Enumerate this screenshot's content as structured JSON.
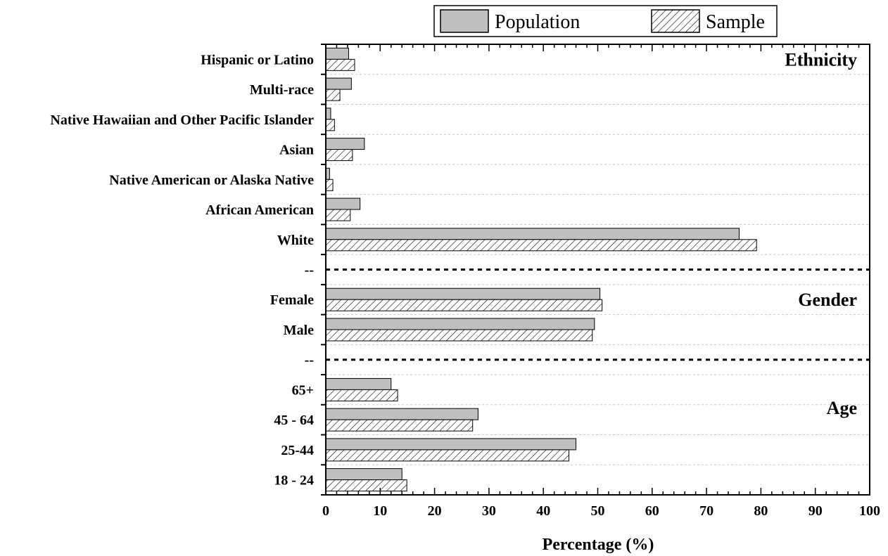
{
  "colors": {
    "population_fill": "#c0c0c0",
    "sample_fill": "#ffffff",
    "stroke": "#000000",
    "grid": "#c8c8c8"
  },
  "chart_data": {
    "type": "bar",
    "orientation": "horizontal",
    "xlabel": "Percentage (%)",
    "xlim": [
      0,
      100
    ],
    "xticks": [
      0,
      10,
      20,
      30,
      40,
      50,
      60,
      70,
      80,
      90,
      100
    ],
    "grid": "horizontal dashed",
    "legend_placement": "top",
    "categories": [
      "Hispanic or Latino",
      "Multi-race",
      "Native Hawaiian and Other Pacific Islander",
      "Asian",
      "Native American or Alaska Native",
      "African American",
      "White",
      "--",
      "Female",
      "Male",
      "--",
      "65+",
      "45 - 64",
      "25-44",
      "18 - 24"
    ],
    "series": [
      {
        "name": "Population",
        "values": [
          4.2,
          4.7,
          0.9,
          7.1,
          0.7,
          6.3,
          76.0,
          null,
          50.4,
          49.4,
          null,
          12.0,
          28.0,
          46.0,
          14.0
        ]
      },
      {
        "name": "Sample",
        "values": [
          5.3,
          2.6,
          1.6,
          4.9,
          1.3,
          4.5,
          79.2,
          null,
          50.8,
          49.0,
          null,
          13.2,
          27.0,
          44.7,
          14.9
        ]
      }
    ],
    "separators_after_index": [
      7,
      10
    ],
    "section_labels": [
      {
        "text": "Ethnicity",
        "row": 0
      },
      {
        "text": "Gender",
        "row": 8
      },
      {
        "text": "Age",
        "row": 11.6
      }
    ]
  }
}
